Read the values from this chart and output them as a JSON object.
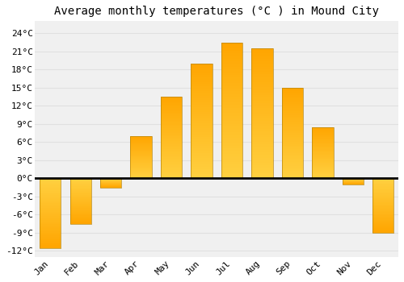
{
  "title": "Average monthly temperatures (°C ) in Mound City",
  "months": [
    "Jan",
    "Feb",
    "Mar",
    "Apr",
    "May",
    "Jun",
    "Jul",
    "Aug",
    "Sep",
    "Oct",
    "Nov",
    "Dec"
  ],
  "values": [
    -11.5,
    -7.5,
    -1.5,
    7.0,
    13.5,
    19.0,
    22.5,
    21.5,
    15.0,
    8.5,
    -1.0,
    -9.0
  ],
  "bar_color_top": "#FFA500",
  "bar_color_bottom": "#FFD060",
  "bar_edge_color": "#B8860B",
  "ylim": [
    -13,
    26
  ],
  "yticks": [
    -12,
    -9,
    -6,
    -3,
    0,
    3,
    6,
    9,
    12,
    15,
    18,
    21,
    24
  ],
  "ytick_labels": [
    "-12°C",
    "-9°C",
    "-6°C",
    "-3°C",
    "0°C",
    "3°C",
    "6°C",
    "9°C",
    "12°C",
    "15°C",
    "18°C",
    "21°C",
    "24°C"
  ],
  "background_color": "#ffffff",
  "plot_bg_color": "#f0f0f0",
  "grid_color": "#e0e0e0",
  "title_fontsize": 10,
  "tick_fontsize": 8,
  "font_family": "monospace",
  "bar_width": 0.7
}
